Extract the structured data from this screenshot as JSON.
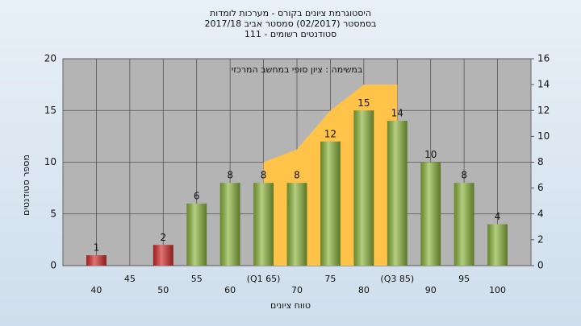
{
  "chart_data": {
    "type": "bar",
    "title": [
      "היסטוגרמת ציונים בקורס - מערכות לומדות",
      "בסמסטר  (02/2017)  סמסטר אביב 2017/18",
      "סטודנטים רשומים - 111"
    ],
    "annotation": "במשימה : ציון סופי במחשב המרכזי",
    "x_label": "טווח ציונים",
    "y_label": "מספר סטודנטים",
    "categories": [
      "40",
      "45",
      "50",
      "55",
      "60",
      "(Q1 65)",
      "70",
      "75",
      "80",
      "(Q3 85)",
      "90",
      "95",
      "100"
    ],
    "series": [
      {
        "type": "bar",
        "values": [
          1,
          null,
          2,
          6,
          8,
          8,
          8,
          12,
          15,
          14,
          10,
          8,
          4
        ],
        "colors": [
          "#d42a2a",
          "#d42a2a",
          "#d42a2a",
          "#8cb63c",
          "#8cb63c",
          "#8cb63c",
          "#8cb63c",
          "#8cb63c",
          "#8cb63c",
          "#8cb63c",
          "#8cb63c",
          "#8cb63c",
          "#8cb63c"
        ]
      },
      {
        "type": "area",
        "axis": "y2",
        "color": "#ffc34a",
        "values": [
          null,
          null,
          null,
          null,
          null,
          8,
          9,
          12,
          14,
          14,
          null,
          null,
          null
        ]
      }
    ],
    "ylim": [
      0,
      20
    ],
    "yticks": [
      0,
      5,
      10,
      15,
      20
    ],
    "y2lim": [
      0,
      16
    ],
    "y2ticks": [
      0,
      2,
      4,
      6,
      8,
      10,
      12,
      14,
      16
    ],
    "grid": true
  }
}
